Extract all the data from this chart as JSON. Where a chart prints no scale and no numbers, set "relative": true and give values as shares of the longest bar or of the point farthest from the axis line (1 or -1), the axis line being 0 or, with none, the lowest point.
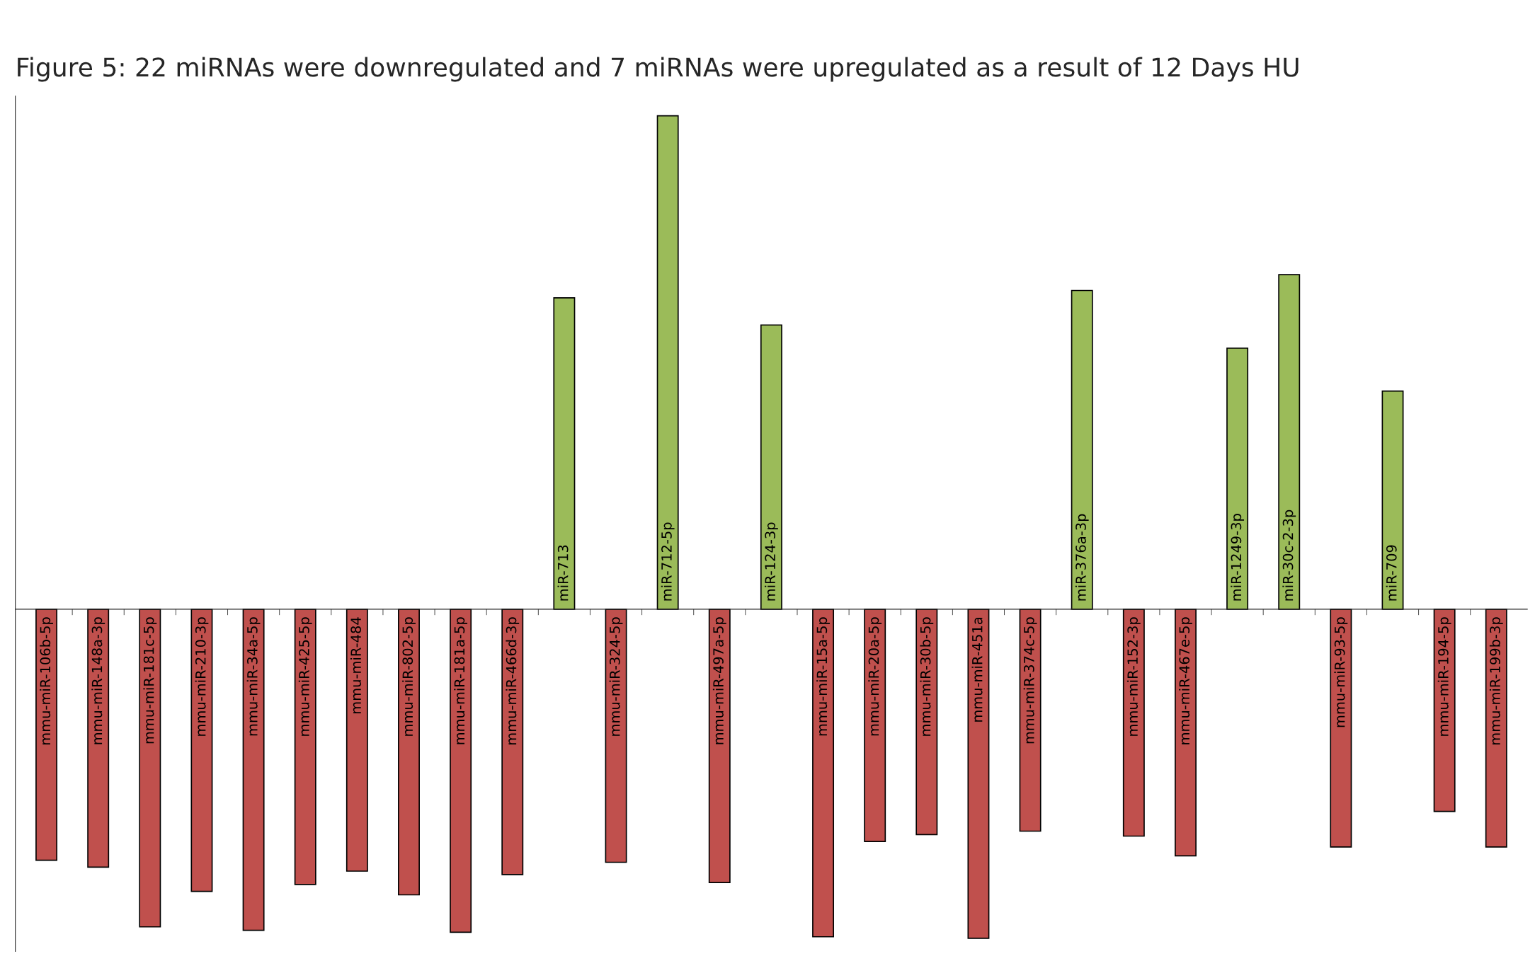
{
  "chart_data": {
    "type": "bar",
    "relative": true,
    "title": "Figure 5: 22 miRNAs were downregulated and 7 miRNAs were upregulated as a result of 12 Days HU",
    "categories": [
      "mmu-miR-106b-5p",
      "mmu-miR-148a-3p",
      "mmu-miR-181c-5p",
      "mmu-miR-210-3p",
      "mmu-miR-34a-5p",
      "mmu-miR-425-5p",
      "mmu-miR-484",
      "mmu-miR-802-5p",
      "mmu-miR-181a-5p",
      "mmu-miR-466d-3p",
      "miR-713",
      "mmu-miR-324-5p",
      "miR-712-5p",
      "mmu-miR-497a-5p",
      "miR-124-3p",
      "mmu-miR-15a-5p",
      "mmu-miR-20a-5p",
      "mmu-miR-30b-5p",
      "mmu-miR-451a",
      "mmu-miR-374c-5p",
      "miR-376a-3p",
      "mmu-miR-152-3p",
      "mmu-miR-467e-5p",
      "miR-1249-3p",
      "miR-30c-2-3p",
      "mmu-miR-93-5p",
      "miR-709",
      "mmu-miR-194-5p",
      "mmu-miR-199b-3p"
    ],
    "values": [
      -0.509,
      -0.523,
      -0.644,
      -0.572,
      -0.651,
      -0.558,
      -0.531,
      -0.579,
      -0.655,
      -0.538,
      0.631,
      -0.513,
      1,
      -0.554,
      0.576,
      -0.664,
      -0.471,
      -0.457,
      -0.667,
      -0.45,
      0.646,
      -0.46,
      -0.5,
      0.529,
      0.678,
      -0.482,
      0.442,
      -0.41,
      -0.482
    ],
    "colors": [
      "#c0504d",
      "#c0504d",
      "#c0504d",
      "#c0504d",
      "#c0504d",
      "#c0504d",
      "#c0504d",
      "#c0504d",
      "#c0504d",
      "#c0504d",
      "#9bbb59",
      "#c0504d",
      "#9bbb59",
      "#c0504d",
      "#9bbb59",
      "#c0504d",
      "#c0504d",
      "#c0504d",
      "#c0504d",
      "#c0504d",
      "#9bbb59",
      "#c0504d",
      "#c0504d",
      "#9bbb59",
      "#9bbb59",
      "#c0504d",
      "#9bbb59",
      "#c0504d",
      "#c0504d"
    ]
  }
}
